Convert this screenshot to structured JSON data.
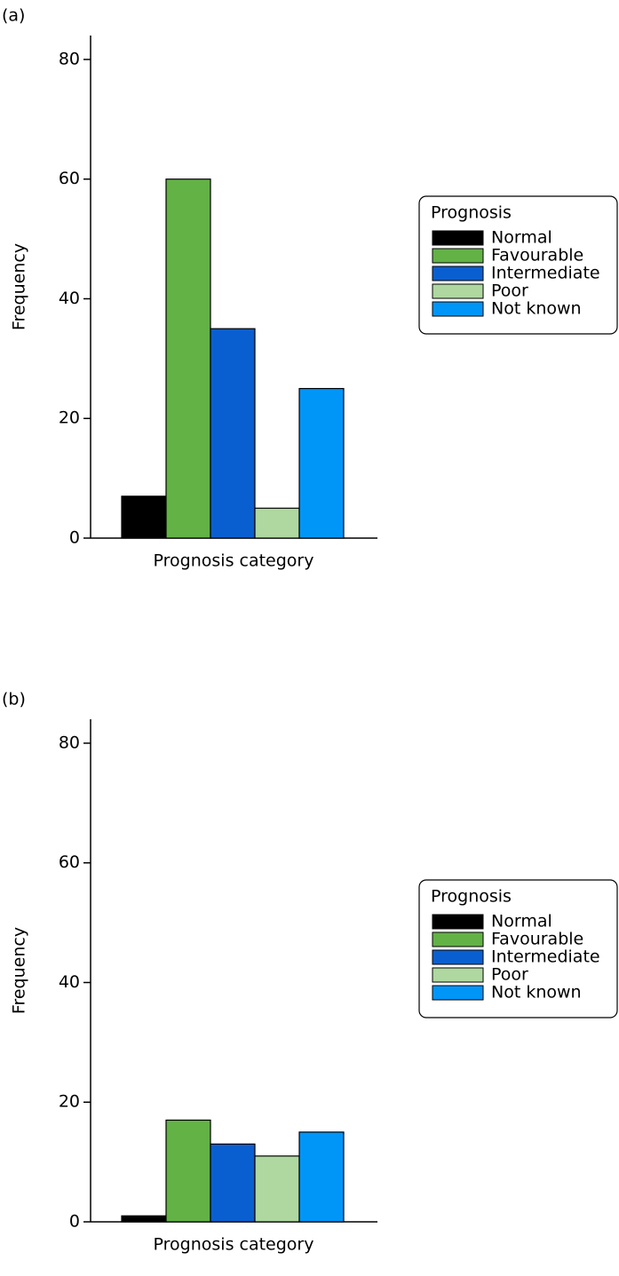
{
  "chart_data": [
    {
      "type": "bar",
      "panel_label": "(a)",
      "ylabel": "Frequency",
      "xlabel": "Prognosis category",
      "legend_title": "Prognosis",
      "categories": [
        null
      ],
      "series": [
        {
          "name": "Normal",
          "color": "#000000",
          "values": [
            7
          ]
        },
        {
          "name": "Favourable",
          "color": "#62b245",
          "values": [
            60
          ]
        },
        {
          "name": "Intermediate",
          "color": "#0a5fd0",
          "values": [
            35
          ]
        },
        {
          "name": "Poor",
          "color": "#aed8a0",
          "values": [
            5
          ]
        },
        {
          "name": "Not known",
          "color": "#0096f8",
          "values": [
            25
          ]
        }
      ],
      "ylim": [
        0,
        84
      ],
      "yticks": [
        0,
        20,
        40,
        60,
        80
      ]
    },
    {
      "type": "bar",
      "panel_label": "(b)",
      "ylabel": "Frequency",
      "xlabel": "Prognosis category",
      "legend_title": "Prognosis",
      "categories": [
        null
      ],
      "series": [
        {
          "name": "Normal",
          "color": "#000000",
          "values": [
            1
          ]
        },
        {
          "name": "Favourable",
          "color": "#62b245",
          "values": [
            17
          ]
        },
        {
          "name": "Intermediate",
          "color": "#0a5fd0",
          "values": [
            13
          ]
        },
        {
          "name": "Poor",
          "color": "#aed8a0",
          "values": [
            11
          ]
        },
        {
          "name": "Not known",
          "color": "#0096f8",
          "values": [
            15
          ]
        }
      ],
      "ylim": [
        0,
        84
      ],
      "yticks": [
        0,
        20,
        40,
        60,
        80
      ]
    }
  ]
}
